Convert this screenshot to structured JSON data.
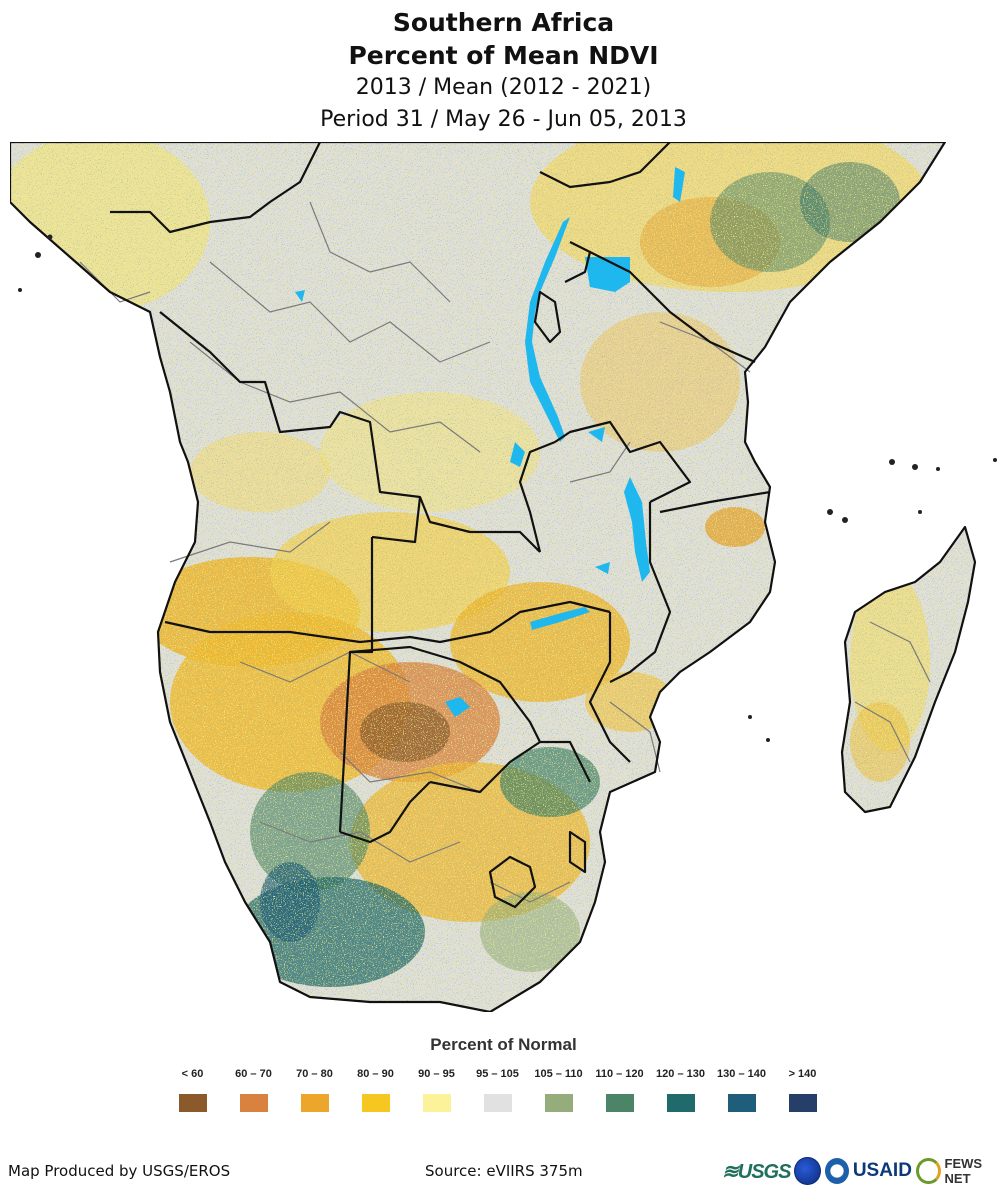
{
  "title": {
    "line1": "Southern Africa",
    "line2": "Percent of Mean NDVI",
    "line3": "2013 / Mean (2012 - 2021)",
    "line4": "Period 31 / May 26 - Jun 05, 2013"
  },
  "legend": {
    "title": "Percent of Normal",
    "items": [
      {
        "label": "< 60",
        "color": "#8a5a2b"
      },
      {
        "label": "60 – 70",
        "color": "#d9823f"
      },
      {
        "label": "70 – 80",
        "color": "#eda62c"
      },
      {
        "label": "80 – 90",
        "color": "#f6c621"
      },
      {
        "label": "90 – 95",
        "color": "#fbf29a"
      },
      {
        "label": "95 – 105",
        "color": "#e1e1e1"
      },
      {
        "label": "105 – 110",
        "color": "#94ad7a"
      },
      {
        "label": "110 – 120",
        "color": "#4b8467"
      },
      {
        "label": "120 – 130",
        "color": "#216a6b"
      },
      {
        "label": "130 – 140",
        "color": "#1f5e7a"
      },
      {
        "label": "> 140",
        "color": "#263f68"
      }
    ]
  },
  "footer": {
    "credit": "Map Produced by USGS/EROS",
    "source": "Source: eVIIRS 375m",
    "logos": {
      "usgs": "≋USGS",
      "usaid": "USAID",
      "fews": "FEWS NET"
    }
  },
  "colors": {
    "water": "#1fb8ee",
    "land_base": "#dedede",
    "border_country": "#111111",
    "border_admin": "#777777"
  }
}
